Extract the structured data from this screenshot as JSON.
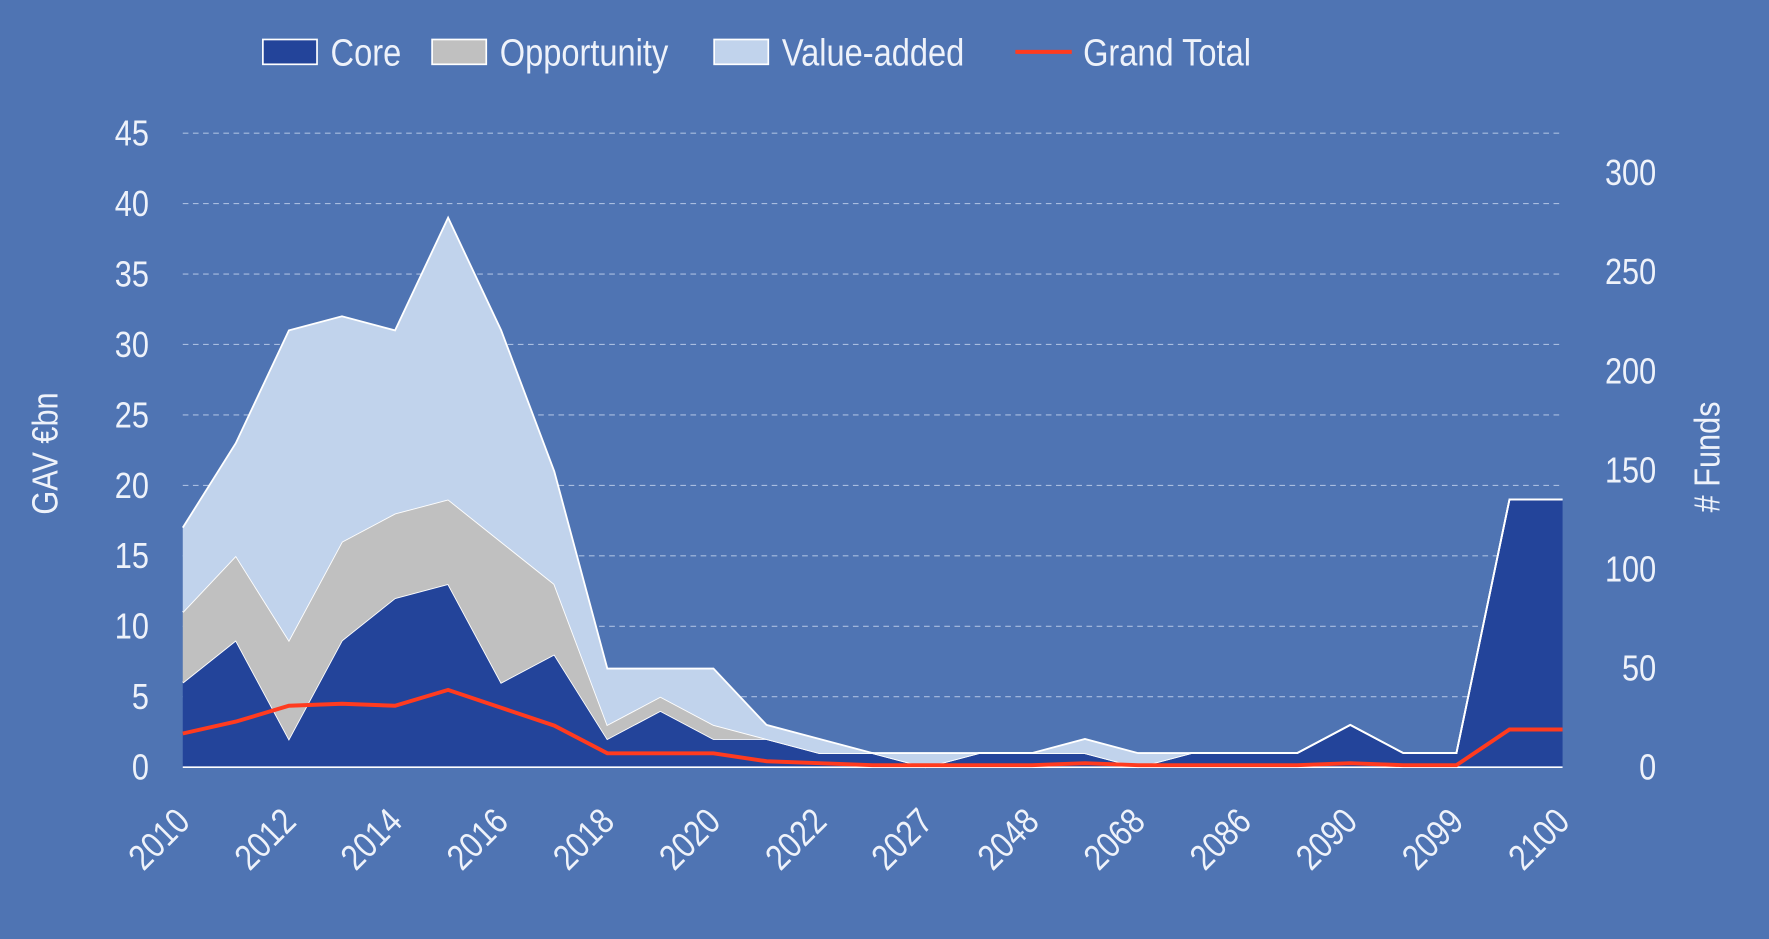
{
  "chart_data": {
    "type": "area",
    "stacked": true,
    "y_label": "GAV €bn",
    "y2_label": "# Funds",
    "categories": [
      "2010",
      null,
      "2012",
      null,
      "2014",
      null,
      "2016",
      null,
      "2018",
      null,
      "2020",
      null,
      "2022",
      null,
      "2027",
      null,
      "2048",
      null,
      "2068",
      null,
      "2086",
      null,
      "2090",
      null,
      "2099",
      null,
      "2100"
    ],
    "series": [
      {
        "name": "Core",
        "color": "#23449a",
        "values": [
          6,
          9,
          2,
          9,
          12,
          13,
          6,
          8,
          2,
          4,
          2,
          2,
          1,
          1,
          0,
          1,
          1,
          1,
          0,
          1,
          1,
          1,
          3,
          1,
          1,
          19,
          19
        ]
      },
      {
        "name": "Opportunity",
        "color": "#c0c0c0",
        "values": [
          5,
          6,
          7,
          7,
          6,
          6,
          10,
          5,
          1,
          1,
          1,
          0,
          0,
          0,
          0,
          0,
          0,
          0,
          0,
          0,
          0,
          0,
          0,
          0,
          0,
          0,
          0
        ]
      },
      {
        "name": "Value-added",
        "color": "#c1d3ec",
        "values": [
          6,
          8,
          22,
          16,
          13,
          20,
          15,
          8,
          4,
          2,
          4,
          1,
          1,
          0,
          1,
          0,
          0,
          1,
          1,
          0,
          0,
          0,
          0,
          0,
          0,
          0,
          0
        ]
      },
      {
        "name": "Grand Total",
        "color": "#ff3b1f",
        "type": "line",
        "axis": "y2",
        "values": [
          17,
          23,
          31,
          32,
          31,
          39,
          30,
          21,
          7,
          7,
          7,
          3,
          2,
          1,
          1,
          1,
          1,
          2,
          1,
          1,
          1,
          1,
          2,
          1,
          1,
          19,
          19
        ]
      }
    ],
    "ylim": [
      0,
      45
    ],
    "yticks": [
      0,
      5,
      10,
      15,
      20,
      25,
      30,
      35,
      40,
      45
    ],
    "y2lim": [
      0,
      320
    ],
    "y2ticks": [
      0,
      50,
      100,
      150,
      200,
      250,
      300
    ],
    "grid": true,
    "legend": "top"
  }
}
